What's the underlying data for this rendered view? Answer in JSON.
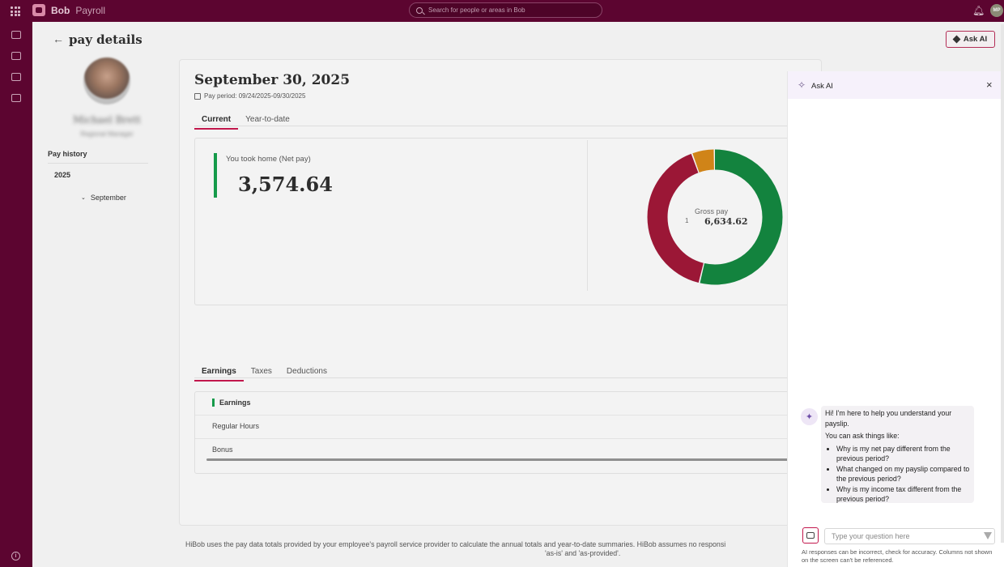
{
  "topbar": {
    "brand_name": "Bob",
    "brand_sub": "Payroll",
    "search_placeholder": "Search for people or areas in Bob",
    "avatar_initials": "MP"
  },
  "header": {
    "back": "←",
    "title": "pay details",
    "ask_ai_label": "Ask AI"
  },
  "employee": {
    "name": "Michael Brett",
    "role": "Regional Manager"
  },
  "sidebar": {
    "pay_history": "Pay history",
    "year": "2025",
    "month": "September",
    "chevron": "⌄"
  },
  "payslip": {
    "date": "September 30, 2025",
    "period": "Pay period: 09/24/2025-09/30/2025",
    "tabs": [
      "Current",
      "Year-to-date"
    ],
    "net_pay_label": "You took home (Net pay)",
    "net_pay_value": "3,574.64",
    "gross_label": "Gross pay",
    "gross_value": "6,634.62",
    "gross_prefix": "1",
    "donut": {
      "segments": [
        {
          "name": "net",
          "value": 3574.64,
          "color": "#13833e"
        },
        {
          "name": "taxes",
          "value": 2700.0,
          "color": "#9b1736"
        },
        {
          "name": "deductions",
          "value": 359.98,
          "color": "#d08418"
        }
      ]
    }
  },
  "breakdown": {
    "tabs": [
      "Earnings",
      "Taxes",
      "Deductions"
    ],
    "section_title": "Earnings",
    "rows": [
      "Regular Hours",
      "Bonus"
    ]
  },
  "footer": {
    "disclaimer": "HiBob uses the pay data totals provided by your employee's payroll service provider to calculate the annual totals and year-to-date summaries. HiBob assumes no responsi",
    "disclaimer_line2": "'as-is' and 'as-provided'."
  },
  "ai_panel": {
    "title": "Ask AI",
    "close": "×",
    "greeting": "Hi! I'm here to help you understand your payslip.",
    "intro": "You can ask things like:",
    "suggestions": [
      "Why is my net pay different from the previous period?",
      "What changed on my payslip compared to the previous period?",
      "Why is my income tax different from the previous period?"
    ],
    "input_placeholder": "Type your question here",
    "disclaimer": "AI responses can be incorrect, check for accuracy. Columns not shown on the screen can't be referenced."
  },
  "colors": {
    "brand": "#5c0530",
    "accent": "#c2174c",
    "net_green": "#159a4a"
  }
}
